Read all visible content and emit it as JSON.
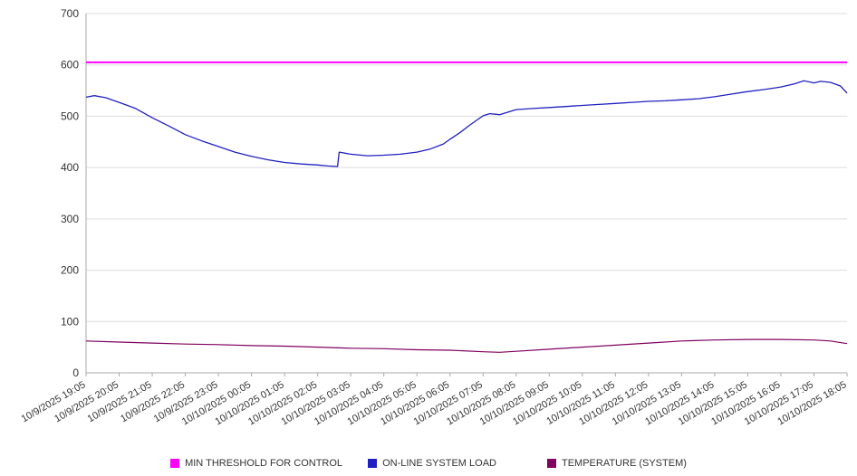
{
  "chart_data": {
    "type": "line",
    "title": "",
    "xlabel": "",
    "ylabel": "",
    "ylim": [
      0,
      700
    ],
    "ytick": 100,
    "grid": "horizontal",
    "legend_position": "bottom",
    "categories": [
      "10/9/2025 19:05",
      "10/9/2025 20:05",
      "10/9/2025 21:05",
      "10/9/2025 22:05",
      "10/9/2025 23:05",
      "10/10/2025 00:05",
      "10/10/2025 01:05",
      "10/10/2025 02:05",
      "10/10/2025 03:05",
      "10/10/2025 04:05",
      "10/10/2025 05:05",
      "10/10/2025 06:05",
      "10/10/2025 07:05",
      "10/10/2025 08:05",
      "10/10/2025 09:05",
      "10/10/2025 10:05",
      "10/10/2025 11:05",
      "10/10/2025 12:05",
      "10/10/2025 13:05",
      "10/10/2025 14:05",
      "10/10/2025 15:05",
      "10/10/2025 16:05",
      "10/10/2025 17:05",
      "10/10/2025 18:05"
    ],
    "series": [
      {
        "name": "MIN THRESHOLD FOR CONTROL",
        "color": "#ff00ff",
        "width": 2,
        "x": [
          0,
          23
        ],
        "values": [
          605,
          605
        ]
      },
      {
        "name": "ON-LINE SYSTEM LOAD",
        "color": "#2020c0",
        "width": 1.3,
        "x": [
          0,
          0.25,
          0.6,
          1,
          1.5,
          2,
          2.5,
          3,
          3.5,
          4,
          4.5,
          5,
          5.5,
          6,
          6.5,
          7,
          7.3,
          7.6,
          7.65,
          8,
          8.5,
          9,
          9.5,
          10,
          10.4,
          10.8,
          11,
          11.3,
          11.6,
          12,
          12.2,
          12.5,
          13,
          13.5,
          14,
          14.5,
          15,
          15.5,
          16,
          16.5,
          17,
          17.5,
          18,
          18.5,
          19,
          19.5,
          20,
          20.5,
          21,
          21.4,
          21.7,
          22,
          22.2,
          22.5,
          22.8,
          23
        ],
        "values": [
          537,
          540,
          536,
          527,
          515,
          497,
          481,
          464,
          452,
          441,
          430,
          422,
          415,
          410,
          407,
          405,
          403,
          402,
          430,
          426,
          423,
          424,
          426,
          430,
          436,
          446,
          455,
          468,
          483,
          501,
          505,
          503,
          513,
          515,
          517,
          519,
          521,
          523,
          525,
          527,
          529,
          530,
          532,
          534,
          538,
          543,
          548,
          552,
          557,
          563,
          569,
          565,
          568,
          566,
          559,
          545
        ]
      },
      {
        "name": "TEMPERATURE (SYSTEM)",
        "color": "#800060",
        "width": 1.2,
        "x": [
          0,
          1,
          2,
          3,
          4,
          5,
          6,
          7,
          8,
          9,
          10,
          11,
          12,
          12.5,
          13,
          14,
          15,
          16,
          17,
          18,
          19,
          20,
          21,
          22,
          22.5,
          23
        ],
        "values": [
          62,
          60,
          58,
          56,
          55,
          53,
          52,
          50,
          48,
          47,
          45,
          44,
          41,
          40,
          42,
          46,
          50,
          54,
          58,
          62,
          64,
          65,
          65,
          64,
          62,
          57
        ]
      }
    ]
  }
}
